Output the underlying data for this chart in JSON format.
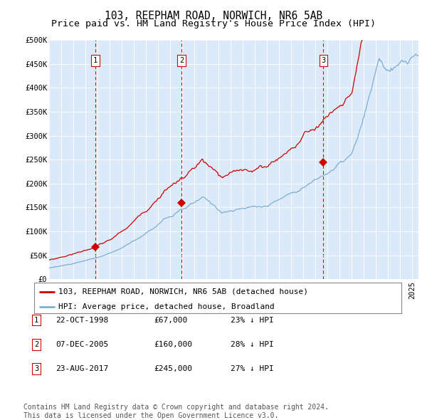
{
  "title": "103, REEPHAM ROAD, NORWICH, NR6 5AB",
  "subtitle": "Price paid vs. HM Land Registry's House Price Index (HPI)",
  "ylim": [
    0,
    500000
  ],
  "yticks": [
    0,
    50000,
    100000,
    150000,
    200000,
    250000,
    300000,
    350000,
    400000,
    450000,
    500000
  ],
  "ytick_labels": [
    "£0",
    "£50K",
    "£100K",
    "£150K",
    "£200K",
    "£250K",
    "£300K",
    "£350K",
    "£400K",
    "£450K",
    "£500K"
  ],
  "xlim_start": 1995.0,
  "xlim_end": 2025.5,
  "plot_bg": "#dce9f8",
  "red_line_color": "#cc0000",
  "blue_line_color": "#7bafd4",
  "dashed_line_color": "#cc0000",
  "sale_dates": [
    1998.81,
    2005.93,
    2017.64
  ],
  "sale_prices": [
    67000,
    160000,
    245000
  ],
  "sale_labels": [
    "1",
    "2",
    "3"
  ],
  "legend_red": "103, REEPHAM ROAD, NORWICH, NR6 5AB (detached house)",
  "legend_blue": "HPI: Average price, detached house, Broadland",
  "table_rows": [
    {
      "num": "1",
      "date": "22-OCT-1998",
      "price": "£67,000",
      "hpi": "23% ↓ HPI"
    },
    {
      "num": "2",
      "date": "07-DEC-2005",
      "price": "£160,000",
      "hpi": "28% ↓ HPI"
    },
    {
      "num": "3",
      "date": "23-AUG-2017",
      "price": "£245,000",
      "hpi": "27% ↓ HPI"
    }
  ],
  "footer": "Contains HM Land Registry data © Crown copyright and database right 2024.\nThis data is licensed under the Open Government Licence v3.0.",
  "title_fontsize": 10.5,
  "subtitle_fontsize": 9.5,
  "tick_fontsize": 7.5,
  "legend_fontsize": 8,
  "table_fontsize": 8,
  "footer_fontsize": 7
}
